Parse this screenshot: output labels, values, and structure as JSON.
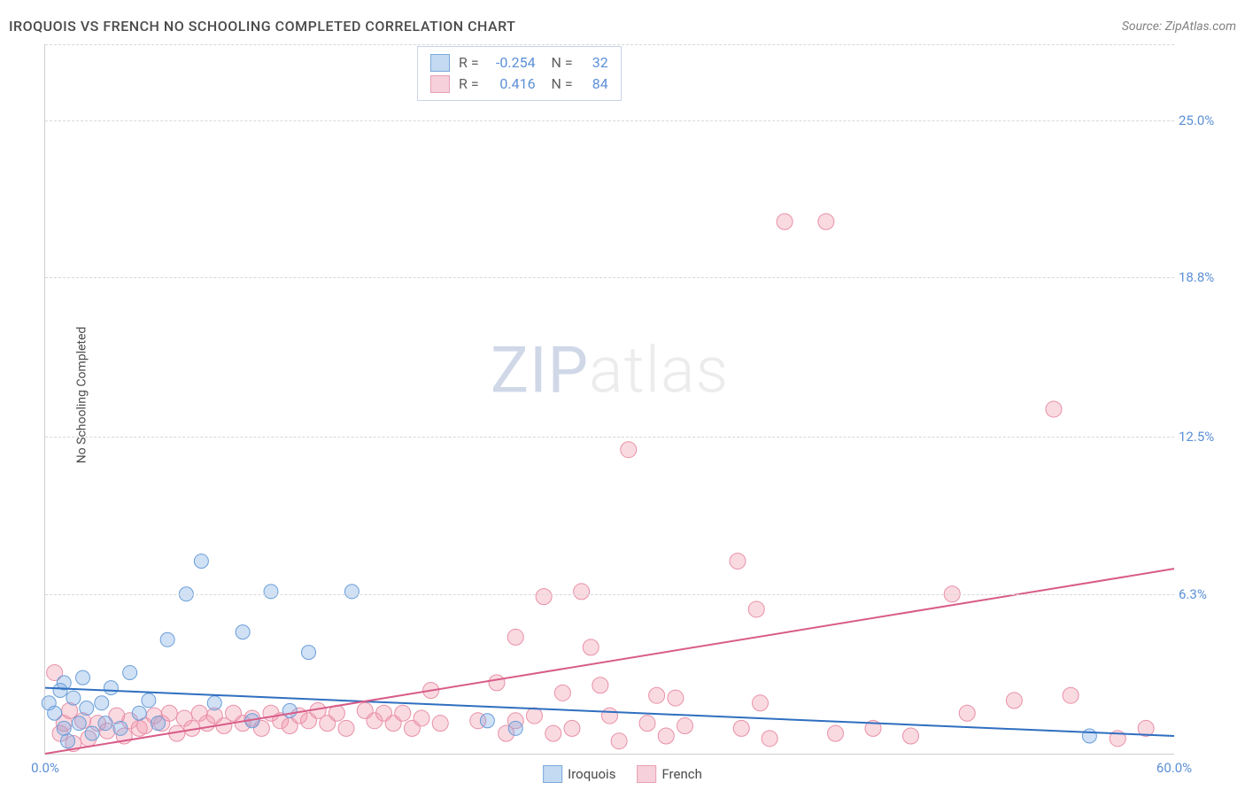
{
  "header": {
    "title": "IROQUOIS VS FRENCH NO SCHOOLING COMPLETED CORRELATION CHART",
    "source": "Source: ZipAtlas.com"
  },
  "watermark": {
    "zip": "ZIP",
    "atlas": "atlas"
  },
  "chart": {
    "type": "scatter",
    "ylabel": "No Schooling Completed",
    "xlim": [
      0,
      60
    ],
    "ylim": [
      0,
      28
    ],
    "xticks": [
      {
        "pos": 0,
        "label": "0.0%"
      },
      {
        "pos": 60,
        "label": "60.0%"
      }
    ],
    "yticks": [
      {
        "pos": 6.3,
        "label": "6.3%"
      },
      {
        "pos": 12.5,
        "label": "12.5%"
      },
      {
        "pos": 18.8,
        "label": "18.8%"
      },
      {
        "pos": 25.0,
        "label": "25.0%"
      }
    ],
    "background_color": "#ffffff",
    "grid_color": "#d8d8d8",
    "series": [
      {
        "name": "Iroquois",
        "color_fill": "rgba(120,170,230,0.35)",
        "color_stroke": "#6a9ed8",
        "swatch_fill": "#c3daf2",
        "swatch_stroke": "#7aa8dc",
        "R": "-0.254",
        "N": "32",
        "trend": {
          "x1": 0,
          "y1": 2.6,
          "x2": 60,
          "y2": 0.7,
          "color": "#2f6fc0",
          "width": 2
        },
        "marker_r": 8,
        "points": [
          [
            0.2,
            2.0
          ],
          [
            0.5,
            1.6
          ],
          [
            0.8,
            2.5
          ],
          [
            1.0,
            1.0
          ],
          [
            1.0,
            2.8
          ],
          [
            1.2,
            0.5
          ],
          [
            1.5,
            2.2
          ],
          [
            1.8,
            1.2
          ],
          [
            2.0,
            3.0
          ],
          [
            2.2,
            1.8
          ],
          [
            2.5,
            0.8
          ],
          [
            3.0,
            2.0
          ],
          [
            3.2,
            1.2
          ],
          [
            3.5,
            2.6
          ],
          [
            4.0,
            1.0
          ],
          [
            4.5,
            3.2
          ],
          [
            5.0,
            1.6
          ],
          [
            5.5,
            2.1
          ],
          [
            6.0,
            1.2
          ],
          [
            6.5,
            4.5
          ],
          [
            7.5,
            6.3
          ],
          [
            8.3,
            7.6
          ],
          [
            9.0,
            2.0
          ],
          [
            10.5,
            4.8
          ],
          [
            11.0,
            1.3
          ],
          [
            12.0,
            6.4
          ],
          [
            13.0,
            1.7
          ],
          [
            14.0,
            4.0
          ],
          [
            16.3,
            6.4
          ],
          [
            23.5,
            1.3
          ],
          [
            25.0,
            1.0
          ],
          [
            55.5,
            0.7
          ]
        ]
      },
      {
        "name": "French",
        "color_fill": "rgba(240,150,170,0.35)",
        "color_stroke": "#e890a8",
        "swatch_fill": "#f6d0da",
        "swatch_stroke": "#e8a0b4",
        "R": "0.416",
        "N": "84",
        "trend": {
          "x1": 0,
          "y1": 0.0,
          "x2": 60,
          "y2": 7.3,
          "color": "#d85c88",
          "width": 2
        },
        "marker_r": 9,
        "points": [
          [
            0.5,
            3.2
          ],
          [
            0.8,
            0.8
          ],
          [
            1.0,
            1.2
          ],
          [
            1.3,
            1.7
          ],
          [
            1.5,
            0.4
          ],
          [
            2.0,
            1.3
          ],
          [
            2.3,
            0.6
          ],
          [
            2.8,
            1.2
          ],
          [
            3.3,
            0.9
          ],
          [
            3.8,
            1.5
          ],
          [
            4.2,
            0.7
          ],
          [
            4.5,
            1.3
          ],
          [
            5.0,
            1.0
          ],
          [
            5.3,
            1.1
          ],
          [
            5.8,
            1.5
          ],
          [
            6.2,
            1.2
          ],
          [
            6.6,
            1.6
          ],
          [
            7.0,
            0.8
          ],
          [
            7.4,
            1.4
          ],
          [
            7.8,
            1.0
          ],
          [
            8.2,
            1.6
          ],
          [
            8.6,
            1.2
          ],
          [
            9.0,
            1.5
          ],
          [
            9.5,
            1.1
          ],
          [
            10.0,
            1.6
          ],
          [
            10.5,
            1.2
          ],
          [
            11.0,
            1.4
          ],
          [
            11.5,
            1.0
          ],
          [
            12.0,
            1.6
          ],
          [
            12.5,
            1.3
          ],
          [
            13.0,
            1.1
          ],
          [
            13.5,
            1.5
          ],
          [
            14.0,
            1.3
          ],
          [
            14.5,
            1.7
          ],
          [
            15.0,
            1.2
          ],
          [
            15.5,
            1.6
          ],
          [
            16.0,
            1.0
          ],
          [
            17.0,
            1.7
          ],
          [
            17.5,
            1.3
          ],
          [
            18.0,
            1.6
          ],
          [
            18.5,
            1.2
          ],
          [
            19.0,
            1.6
          ],
          [
            19.5,
            1.0
          ],
          [
            20.0,
            1.4
          ],
          [
            20.5,
            2.5
          ],
          [
            21.0,
            1.2
          ],
          [
            23.0,
            1.3
          ],
          [
            24.0,
            2.8
          ],
          [
            24.5,
            0.8
          ],
          [
            25.0,
            4.6
          ],
          [
            25.0,
            1.3
          ],
          [
            26.0,
            1.5
          ],
          [
            26.5,
            6.2
          ],
          [
            27.0,
            0.8
          ],
          [
            27.5,
            2.4
          ],
          [
            28.0,
            1.0
          ],
          [
            28.5,
            6.4
          ],
          [
            29.0,
            4.2
          ],
          [
            29.5,
            2.7
          ],
          [
            30.0,
            1.5
          ],
          [
            30.5,
            0.5
          ],
          [
            31.0,
            12.0
          ],
          [
            32.0,
            1.2
          ],
          [
            32.5,
            2.3
          ],
          [
            33.0,
            0.7
          ],
          [
            33.5,
            2.2
          ],
          [
            34.0,
            1.1
          ],
          [
            36.8,
            7.6
          ],
          [
            37.0,
            1.0
          ],
          [
            37.8,
            5.7
          ],
          [
            38.0,
            2.0
          ],
          [
            38.5,
            0.6
          ],
          [
            39.3,
            21.0
          ],
          [
            41.5,
            21.0
          ],
          [
            42.0,
            0.8
          ],
          [
            44.0,
            1.0
          ],
          [
            46.0,
            0.7
          ],
          [
            48.2,
            6.3
          ],
          [
            49.0,
            1.6
          ],
          [
            51.5,
            2.1
          ],
          [
            53.6,
            13.6
          ],
          [
            54.5,
            2.3
          ],
          [
            57.0,
            0.6
          ],
          [
            58.5,
            1.0
          ]
        ]
      }
    ]
  },
  "bottom_legend": [
    {
      "label": "Iroquois",
      "fill": "#c3daf2",
      "stroke": "#7aa8dc"
    },
    {
      "label": "French",
      "fill": "#f6d0da",
      "stroke": "#e8a0b4"
    }
  ]
}
